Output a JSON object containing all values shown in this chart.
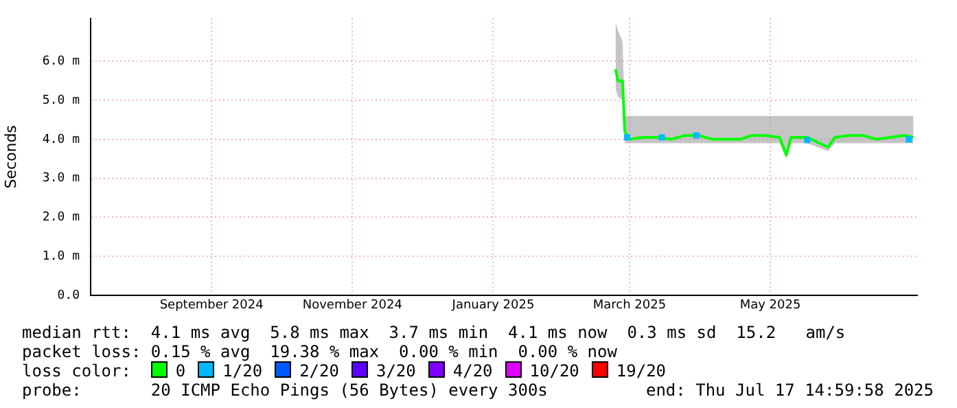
{
  "chart_data": {
    "type": "line",
    "ylabel": "Seconds",
    "legend_title": "loss color:",
    "legend": "bottom",
    "grid": true,
    "marker": "none",
    "line_style": "solid",
    "xlim": [
      "2024-07-24T15:00",
      "2025-07-17T15:00"
    ],
    "xticks": [
      {
        "value": "2024-09-15",
        "label": "September 2024"
      },
      {
        "value": "2024-11-15",
        "label": "November 2024"
      },
      {
        "value": "2025-01-15",
        "label": "January 2025"
      },
      {
        "value": "2025-03-15",
        "label": "March 2025"
      },
      {
        "value": "2025-05-15",
        "label": "May 2025"
      }
    ],
    "ylim": [
      0,
      7.1
    ],
    "yticks": [
      {
        "value": 0,
        "label": "0.0"
      },
      {
        "value": 1,
        "label": "1.0 m"
      },
      {
        "value": 2,
        "label": "2.0 m"
      },
      {
        "value": 3,
        "label": "3.0 m"
      },
      {
        "value": 4,
        "label": "4.0 m"
      },
      {
        "value": 5,
        "label": "5.0 m"
      },
      {
        "value": 6,
        "label": "6.0 m"
      }
    ],
    "series": [
      {
        "name": "0",
        "color": "#00ff00",
        "x": [
          "2025-03-09",
          "2025-03-10",
          "2025-03-12",
          "2025-03-13",
          "2025-03-15",
          "2025-03-21",
          "2025-03-27",
          "2025-04-02",
          "2025-04-08",
          "2025-04-14",
          "2025-04-20",
          "2025-04-26",
          "2025-05-02",
          "2025-05-07",
          "2025-05-13",
          "2025-05-19",
          "2025-05-22",
          "2025-05-24",
          "2025-05-31",
          "2025-06-09",
          "2025-06-12",
          "2025-06-18",
          "2025-06-24",
          "2025-06-30",
          "2025-07-06",
          "2025-07-12",
          "2025-07-16"
        ],
        "values": [
          5.8,
          5.5,
          5.5,
          4.2,
          4.0,
          4.05,
          4.05,
          4.0,
          4.1,
          4.1,
          4.0,
          4.0,
          4.0,
          4.1,
          4.1,
          4.05,
          3.6,
          4.05,
          4.05,
          3.8,
          4.05,
          4.1,
          4.1,
          4.0,
          4.05,
          4.1,
          4.05
        ],
        "lower": [
          5.3,
          5.1,
          5.0,
          3.9,
          3.9,
          3.9,
          3.9,
          3.9,
          3.9,
          3.9,
          3.9,
          3.9,
          3.9,
          3.9,
          3.9,
          3.9,
          3.5,
          3.9,
          3.9,
          3.7,
          3.9,
          3.9,
          3.9,
          3.9,
          3.9,
          3.9,
          3.9
        ],
        "upper": [
          7.0,
          6.8,
          6.5,
          4.6,
          4.6,
          4.6,
          4.6,
          4.6,
          4.6,
          4.6,
          4.6,
          4.6,
          4.6,
          4.6,
          4.6,
          4.6,
          4.6,
          4.6,
          4.6,
          4.6,
          4.6,
          4.6,
          4.6,
          4.6,
          4.6,
          4.6,
          4.6
        ]
      },
      {
        "name": "1/20",
        "color": "#00b8ff",
        "type": "scatter",
        "marker": "square",
        "x": [
          "2025-03-14",
          "2025-03-29",
          "2025-04-13",
          "2025-05-31",
          "2025-07-14"
        ],
        "values": [
          4.05,
          4.05,
          4.1,
          3.98,
          4.0
        ]
      },
      {
        "name": "2/20",
        "color": "#0059ff",
        "type": "scatter",
        "marker": "square"
      },
      {
        "name": "3/20",
        "color": "#5e00ff",
        "type": "scatter",
        "marker": "square"
      },
      {
        "name": "4/20",
        "color": "#7e00ff",
        "type": "scatter",
        "marker": "square"
      },
      {
        "name": "10/20",
        "color": "#dd00ff",
        "type": "scatter",
        "marker": "square"
      },
      {
        "name": "19/20",
        "color": "#ff0000",
        "type": "scatter",
        "marker": "square"
      }
    ],
    "annotations": [
      "median rtt:  4.1 ms avg  5.8 ms max  3.7 ms min  4.1 ms now  0.3 ms sd  15.2   am/s",
      "packet loss: 0.15 % avg  19.38 % max  0.00 % min  0.00 % now",
      "probe:       20 ICMP Echo Pings (56 Bytes) every 300s",
      "end: Thu Jul 17 14:59:58 2025"
    ]
  }
}
